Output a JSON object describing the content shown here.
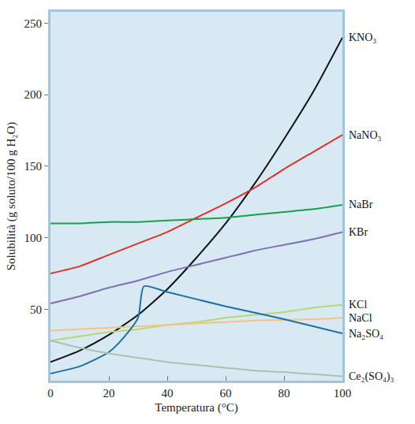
{
  "chart_data": {
    "type": "line",
    "x_label": "Temperatura (°C)",
    "y_label": "Solubilità (g soluto/100 g H₂O)",
    "xlim": [
      0,
      100
    ],
    "xticks": [
      0,
      20,
      40,
      60,
      80,
      100
    ],
    "ylim": [
      0,
      258
    ],
    "yticks": [
      50,
      100,
      150,
      200,
      250
    ],
    "grid": false,
    "series": [
      {
        "name": "KNO₃",
        "color": "#111111",
        "x": [
          0,
          10,
          20,
          30,
          40,
          50,
          60,
          70,
          80,
          90,
          100
        ],
        "values": [
          13,
          21,
          32,
          46,
          64,
          86,
          110,
          138,
          169,
          202,
          240
        ]
      },
      {
        "name": "NaNO₃",
        "color": "#e0302a",
        "x": [
          0,
          10,
          20,
          30,
          40,
          50,
          60,
          70,
          80,
          90,
          100
        ],
        "values": [
          75,
          80,
          88,
          96,
          104,
          114,
          124,
          135,
          148,
          160,
          172
        ]
      },
      {
        "name": "NaBr",
        "color": "#16a04a",
        "x": [
          0,
          10,
          20,
          30,
          40,
          50,
          60,
          70,
          80,
          90,
          100
        ],
        "values": [
          110,
          110,
          111,
          111,
          112,
          113,
          114,
          116,
          118,
          120,
          123
        ]
      },
      {
        "name": "KBr",
        "color": "#7e6fb6",
        "x": [
          0,
          10,
          20,
          30,
          40,
          50,
          60,
          70,
          80,
          90,
          100
        ],
        "values": [
          54,
          59,
          65,
          70,
          76,
          81,
          86,
          91,
          95,
          99,
          104
        ]
      },
      {
        "name": "KCl",
        "color": "#b8d870",
        "x": [
          0,
          10,
          20,
          30,
          40,
          50,
          60,
          70,
          80,
          90,
          100
        ],
        "values": [
          28,
          31,
          34,
          36,
          39,
          41,
          44,
          46,
          48,
          51,
          53
        ]
      },
      {
        "name": "NaCl",
        "color": "#f4c383",
        "x": [
          0,
          10,
          20,
          30,
          40,
          50,
          60,
          70,
          80,
          90,
          100
        ],
        "values": [
          35,
          36,
          37,
          38,
          39,
          40,
          41,
          42,
          42.5,
          43,
          44
        ]
      },
      {
        "name": "Na₂SO₄",
        "color": "#1d6fa8",
        "x": [
          0,
          10,
          20,
          25,
          30,
          32,
          40,
          60,
          80,
          100
        ],
        "values": [
          5,
          10,
          20,
          30,
          44,
          66,
          62,
          52,
          43,
          33
        ]
      },
      {
        "name": "Ce₂(SO₄)₃",
        "color": "#a9c2b2",
        "x": [
          0,
          10,
          20,
          30,
          40,
          50,
          60,
          70,
          80,
          90,
          100
        ],
        "values": [
          28,
          23,
          19,
          16,
          13,
          11,
          9,
          7,
          6,
          4.5,
          3
        ]
      }
    ]
  }
}
